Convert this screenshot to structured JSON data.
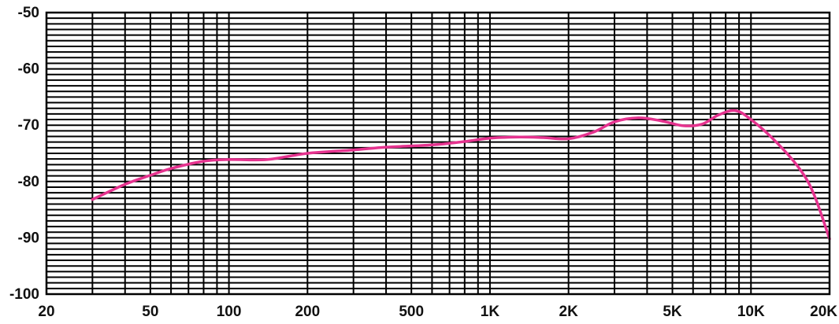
{
  "chart_data": {
    "type": "line",
    "xscale": "log",
    "xlim": [
      20,
      20000
    ],
    "ylim": [
      -100,
      -50
    ],
    "grid": true,
    "title": "",
    "xlabel": "",
    "ylabel": "",
    "y_ticks": [
      {
        "value": -50,
        "label": "-50"
      },
      {
        "value": -60,
        "label": "-60"
      },
      {
        "value": -70,
        "label": "-70"
      },
      {
        "value": -80,
        "label": "-80"
      },
      {
        "value": -90,
        "label": "-90"
      },
      {
        "value": -100,
        "label": "-100"
      }
    ],
    "x_ticks": [
      {
        "value": 20,
        "label": "20"
      },
      {
        "value": 50,
        "label": "50"
      },
      {
        "value": 100,
        "label": "100"
      },
      {
        "value": 200,
        "label": "200"
      },
      {
        "value": 500,
        "label": "500"
      },
      {
        "value": 1000,
        "label": "1K"
      },
      {
        "value": 2000,
        "label": "2K"
      },
      {
        "value": 5000,
        "label": "5K"
      },
      {
        "value": 10000,
        "label": "10K"
      },
      {
        "value": 20000,
        "label": "20K"
      }
    ],
    "series": [
      {
        "color": "#e5338f",
        "points": [
          {
            "x": 30,
            "y": -83.2
          },
          {
            "x": 40,
            "y": -80.5
          },
          {
            "x": 50,
            "y": -78.9
          },
          {
            "x": 60,
            "y": -77.7
          },
          {
            "x": 80,
            "y": -76.4
          },
          {
            "x": 100,
            "y": -76.1
          },
          {
            "x": 140,
            "y": -76.1
          },
          {
            "x": 200,
            "y": -75.0
          },
          {
            "x": 300,
            "y": -74.4
          },
          {
            "x": 400,
            "y": -73.9
          },
          {
            "x": 600,
            "y": -73.5
          },
          {
            "x": 800,
            "y": -72.9
          },
          {
            "x": 1000,
            "y": -72.3
          },
          {
            "x": 1300,
            "y": -72.1
          },
          {
            "x": 1600,
            "y": -72.2
          },
          {
            "x": 2000,
            "y": -72.4
          },
          {
            "x": 2500,
            "y": -71.2
          },
          {
            "x": 3000,
            "y": -69.4
          },
          {
            "x": 3700,
            "y": -68.7
          },
          {
            "x": 4500,
            "y": -69.2
          },
          {
            "x": 5500,
            "y": -70.1
          },
          {
            "x": 6500,
            "y": -69.8
          },
          {
            "x": 7500,
            "y": -68.2
          },
          {
            "x": 8700,
            "y": -67.4
          },
          {
            "x": 10000,
            "y": -69.0
          },
          {
            "x": 12500,
            "y": -73.0
          },
          {
            "x": 15500,
            "y": -78.0
          },
          {
            "x": 17500,
            "y": -82.5
          },
          {
            "x": 20000,
            "y": -90.2
          }
        ]
      }
    ]
  }
}
